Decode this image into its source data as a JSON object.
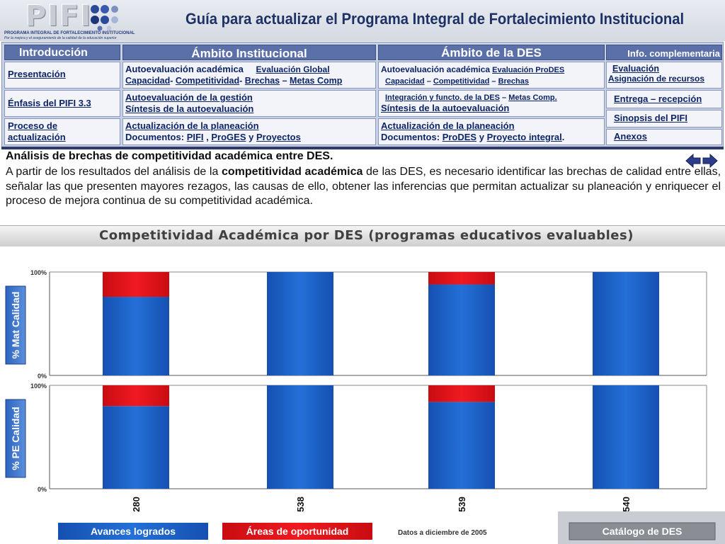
{
  "header": {
    "logo_text": "PIFI",
    "logo_tagline_1": "PROGRAMA INTEGRAL DE FORTALECIMIENTO INSTITUCIONAL",
    "logo_tagline_2": "Por la mejora y el aseguramiento de la calidad de la educación superior",
    "title": "Guía para actualizar el Programa Integral de Fortalecimiento Institucional"
  },
  "nav": {
    "headers": {
      "intro": "Introducción",
      "institucional": "Ámbito Institucional",
      "des": "Ámbito de la DES",
      "info": "Info. complementaria"
    },
    "intro_items": [
      "Presentación",
      "Énfasis del PIFI 3.3",
      "Proceso de actualización"
    ],
    "inst": {
      "r1_autoeval": "Autoevaluación académica",
      "r1_eval_global": "Evaluación Global",
      "r1_capacidad": "Capacidad",
      "r1_competitividad": "Competitividad",
      "r1_brechas": "Brechas",
      "r1_metas": "Metas Comp",
      "r2_gestion": "Autoevaluación de la gestión",
      "r2_sintesis": "Síntesis de la autoevaluación",
      "r3_actualizacion": "Actualización de la planeación",
      "r3_documentos": "Documentos:",
      "r3_pifi": "PIFI",
      "r3_proges": "ProGES",
      "r3_y": "y",
      "r3_proyectos": "Proyectos"
    },
    "des": {
      "r1_autoeval": "Autoevaluación académica",
      "r1_eval_prodes": "Evaluación ProDES",
      "r1_capacidad": "Capacidad",
      "r1_competitividad": "Competitividad",
      "r1_brechas": "Brechas",
      "r2_integracion": "Integración y functo. de la DES",
      "r2_metas": "Metas Comp.",
      "r2_sintesis": "Síntesis de la autoevaluación",
      "r3_actualizacion": "Actualización de la planeación",
      "r3_documentos": "Documentos:",
      "r3_prodes": "ProDES",
      "r3_y": "y",
      "r3_proyecto": "Proyecto integral"
    },
    "info": {
      "evaluacion": "Evaluación",
      "asignacion": "Asignación de recursos",
      "entrega": "Entrega – recepción",
      "sinopsis": "Sinopsis del PIFI",
      "anexos": "Anexos"
    }
  },
  "content": {
    "section_title": "Análisis de brechas de competitividad académica entre DES.",
    "para_1": "A partir de los resultados del análisis de la ",
    "para_bold": "competitividad académica",
    "para_2": " de las DES, es necesario identificar las brechas de calidad entre ellas, señalar las que presenten mayores rezagos, las causas de ello, obtener las inferencias que permitan actualizar su planeación y enriquecer el proceso de mejora continua de su competitividad académica."
  },
  "icons": {
    "prev": "arrow-left-icon",
    "next": "arrow-right-icon"
  },
  "colors": {
    "nav_header": "#5b6fa8",
    "link": "#0d2566",
    "bar_blue": "#1a5fc4",
    "bar_red": "#e8141c"
  },
  "chart_data": {
    "type": "bar",
    "stacked": true,
    "title": "Competitividad Académica por DES (programas educativos evaluables)",
    "categories": [
      "280",
      "538",
      "539",
      "540"
    ],
    "panels": [
      {
        "ylabel": "% Mat Calidad",
        "ylim": [
          0,
          100
        ],
        "ytick_labels": [
          "100%",
          "0%"
        ],
        "series": [
          {
            "name": "Avances logrados",
            "values": [
              76,
              100,
              88,
              100
            ]
          },
          {
            "name": "Áreas de oportunidad",
            "values": [
              24,
              0,
              12,
              0
            ]
          }
        ]
      },
      {
        "ylabel": "% PE Calidad",
        "ylim": [
          0,
          100
        ],
        "ytick_labels": [
          "100%",
          "0%"
        ],
        "series": [
          {
            "name": "Avances logrados",
            "values": [
              80,
              100,
              84,
              100
            ]
          },
          {
            "name": "Áreas de oportunidad",
            "values": [
              20,
              0,
              16,
              0
            ]
          }
        ]
      }
    ],
    "legend": [
      "Avances logrados",
      "Áreas de oportunidad"
    ],
    "note": "Datos a diciembre de 2005",
    "catalog_button": "Catálogo de DES",
    "grid": false,
    "legend_position": "bottom"
  }
}
